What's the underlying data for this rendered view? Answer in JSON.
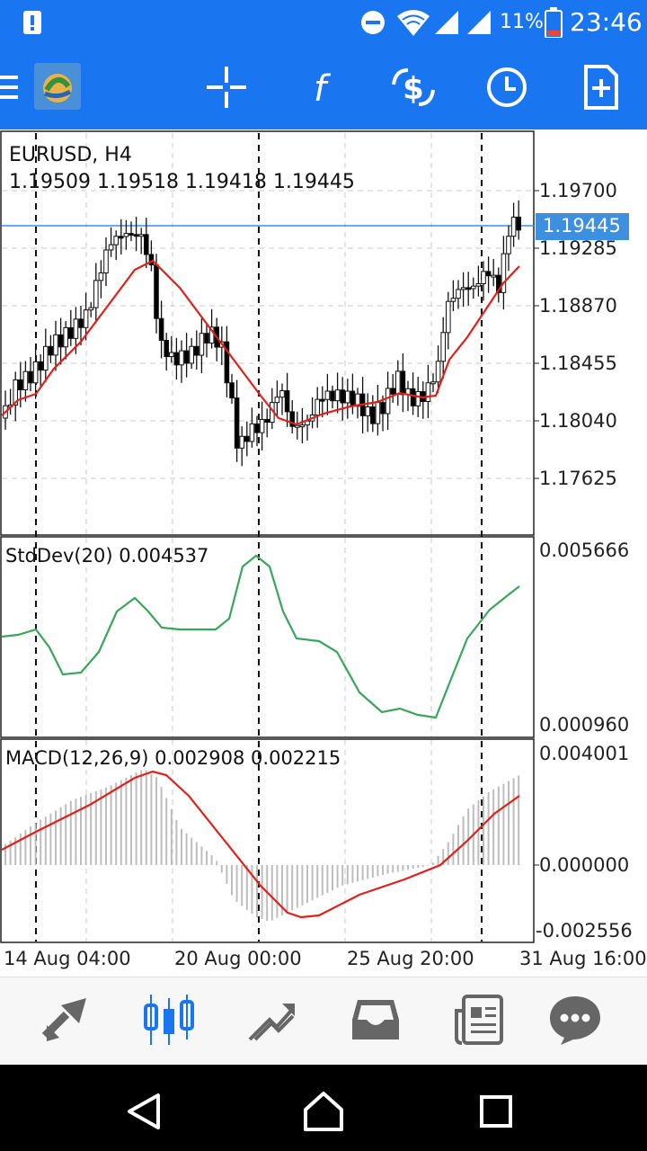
{
  "status_bar": {
    "battery_percent": "11%",
    "time": "23:46",
    "icons": [
      "alert-icon",
      "dnd-icon",
      "wifi-icon",
      "signal-icon",
      "signal-icon-2",
      "battery-icon"
    ]
  },
  "toolbar": {
    "icons": [
      "menu-icon",
      "app-logo",
      "crosshair-icon",
      "indicators-icon",
      "symbol-change-icon",
      "timeframe-icon",
      "new-order-icon"
    ]
  },
  "chart": {
    "symbol_title": "EURUSD, H4",
    "ohlc": "1.19509 1.19518 1.19418 1.19445",
    "current_price": "1.19445",
    "price_ticks": [
      "1.19700",
      "1.19285",
      "1.18870",
      "1.18455",
      "1.18040",
      "1.17625"
    ],
    "stddev_title": "StdDev(20) 0.004537",
    "stddev_ticks": [
      "0.005666",
      "0.000960"
    ],
    "macd_title": "MACD(12,26,9) 0.002908 0.002215",
    "macd_ticks": [
      "0.004001",
      "0.000000",
      "-0.002556"
    ],
    "time_ticks": [
      "14 Aug 04:00",
      "20 Aug 00:00",
      "25 Aug 20:00",
      "31 Aug 16:00"
    ],
    "colors": {
      "candle_up": "#ffffff",
      "candle_down": "#000000",
      "ma": "#e0201b",
      "stddev": "#3aa55c",
      "macd_signal": "#e0201b",
      "macd_hist": "#bdbdbd",
      "price_line": "#3d8fe0",
      "price_badge": "#3d8fe0"
    }
  },
  "bottom_nav": {
    "items": [
      "quotes-icon",
      "chart-icon",
      "trade-icon",
      "history-icon",
      "news-icon",
      "messages-icon"
    ],
    "active": "chart-icon"
  },
  "system_nav": [
    "back-icon",
    "home-icon",
    "recents-icon"
  ]
}
